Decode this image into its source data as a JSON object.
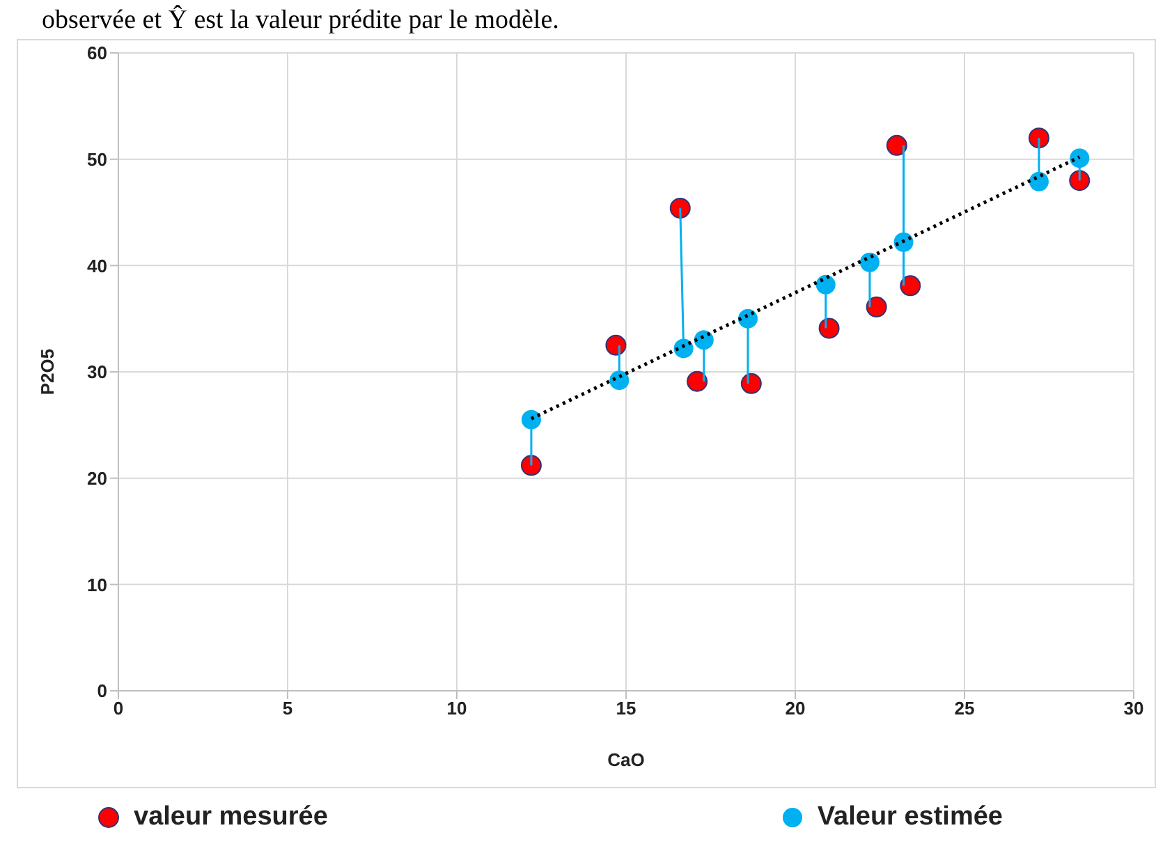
{
  "chart_data": {
    "type": "scatter",
    "xlabel": "CaO",
    "ylabel": "P2O5",
    "annotations": [
      "observée et Ŷ est la valeur prédite par le modèle."
    ],
    "xlim": [
      0,
      30
    ],
    "xticks": [
      0,
      5,
      10,
      15,
      20,
      25,
      30
    ],
    "ylim": [
      0,
      60
    ],
    "yticks": [
      0,
      10,
      20,
      30,
      40,
      50,
      60
    ],
    "grid": true,
    "legend": "bottom",
    "marker": "circle",
    "series": [
      {
        "name": "valeur mesurée",
        "color": "#ff0000",
        "x": [
          12.2,
          14.7,
          16.6,
          17.1,
          18.7,
          21.0,
          22.4,
          23.0,
          23.4,
          27.2,
          28.4
        ],
        "values": [
          21.2,
          32.5,
          45.4,
          29.1,
          28.9,
          34.1,
          36.1,
          51.3,
          38.1,
          52.0,
          48.0
        ]
      },
      {
        "name": "Valeur estimée",
        "color": "#00b0f0",
        "x": [
          12.2,
          14.8,
          16.7,
          17.3,
          18.6,
          20.9,
          22.2,
          23.2,
          27.2,
          28.4
        ],
        "values": [
          25.5,
          29.2,
          32.2,
          33.0,
          35.0,
          38.2,
          40.3,
          42.2,
          47.9,
          50.1
        ]
      },
      {
        "type": "line",
        "color": "#00b0f0",
        "marker": "none",
        "line_style": "solid",
        "x": [
          12.2,
          12.2
        ],
        "values": [
          21.2,
          25.5
        ]
      },
      {
        "type": "line",
        "color": "#00b0f0",
        "marker": "none",
        "line_style": "solid",
        "x": [
          14.8,
          14.8
        ],
        "values": [
          29.2,
          32.5
        ]
      },
      {
        "type": "line",
        "color": "#00b0f0",
        "marker": "none",
        "line_style": "solid",
        "x": [
          16.6,
          16.7
        ],
        "values": [
          45.4,
          32.2
        ]
      },
      {
        "type": "line",
        "color": "#00b0f0",
        "marker": "none",
        "line_style": "solid",
        "x": [
          17.3,
          17.3
        ],
        "values": [
          29.1,
          33.0
        ]
      },
      {
        "type": "line",
        "color": "#00b0f0",
        "marker": "none",
        "line_style": "solid",
        "x": [
          18.6,
          18.6
        ],
        "values": [
          28.9,
          35.0
        ]
      },
      {
        "type": "line",
        "color": "#00b0f0",
        "marker": "none",
        "line_style": "solid",
        "x": [
          20.9,
          20.9
        ],
        "values": [
          34.1,
          38.2
        ]
      },
      {
        "type": "line",
        "color": "#00b0f0",
        "marker": "none",
        "line_style": "solid",
        "x": [
          22.2,
          22.2
        ],
        "values": [
          36.1,
          40.3
        ]
      },
      {
        "type": "line",
        "color": "#00b0f0",
        "marker": "none",
        "line_style": "solid",
        "x": [
          23.2,
          23.2
        ],
        "values": [
          38.1,
          51.3
        ]
      },
      {
        "type": "line",
        "color": "#00b0f0",
        "marker": "none",
        "line_style": "solid",
        "x": [
          27.2,
          27.2
        ],
        "values": [
          47.9,
          52.0
        ]
      },
      {
        "type": "line",
        "color": "#00b0f0",
        "marker": "none",
        "line_style": "solid",
        "x": [
          28.4,
          28.4
        ],
        "values": [
          48.0,
          50.1
        ]
      },
      {
        "type": "line",
        "color": "#000000",
        "marker": "none",
        "line_style": "dotted",
        "x": [
          12.2,
          28.4
        ],
        "values": [
          25.6,
          50.2
        ]
      }
    ]
  }
}
